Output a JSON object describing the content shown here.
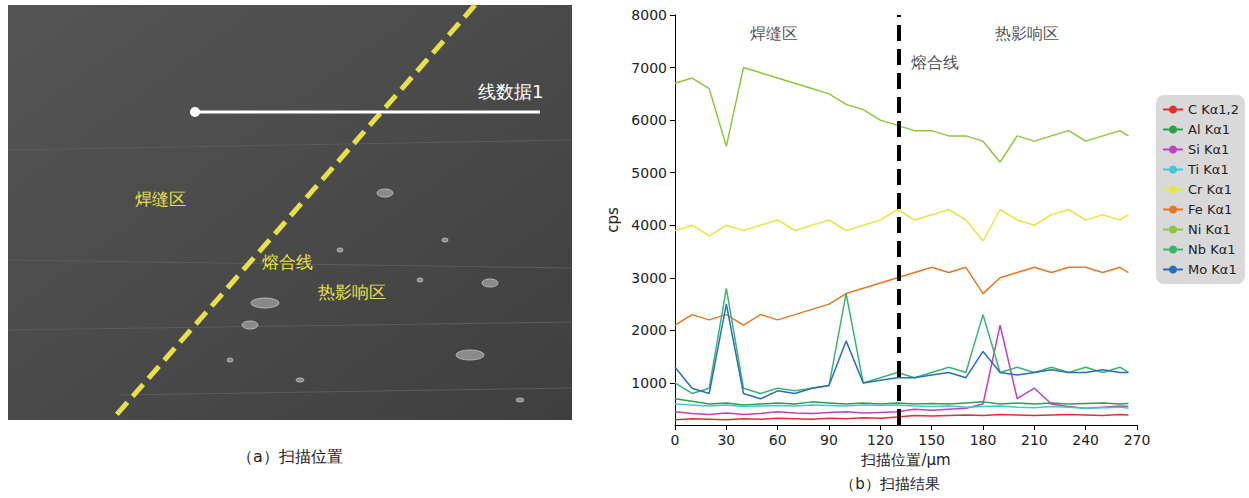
{
  "panel_a": {
    "caption": "（a）扫描位置",
    "labels": {
      "line": "线数据1",
      "weld": "焊缝区",
      "fusion": "熔合线",
      "haz": "热影响区"
    }
  },
  "chart_data": {
    "type": "line",
    "caption": "（b）扫描结果",
    "xlabel": "扫描位置/μm",
    "ylabel": "cps",
    "xlim": [
      0,
      270
    ],
    "xticks": [
      0,
      30,
      60,
      90,
      120,
      150,
      180,
      210,
      240,
      270
    ],
    "ylim": [
      200,
      8000
    ],
    "yticks": [
      1000,
      2000,
      3000,
      4000,
      5000,
      6000,
      7000,
      8000
    ],
    "grid": false,
    "legend": "right",
    "vline": {
      "x": 131
    },
    "annotations": [
      {
        "text": "焊缝区",
        "x": 58,
        "y": 7650
      },
      {
        "text": "热影响区",
        "x": 206,
        "y": 7650
      },
      {
        "text": "熔合线",
        "x": 152,
        "y": 7100
      }
    ],
    "x": [
      0,
      10,
      20,
      30,
      40,
      50,
      60,
      70,
      80,
      90,
      100,
      110,
      120,
      130,
      140,
      150,
      160,
      170,
      180,
      190,
      200,
      210,
      220,
      230,
      240,
      250,
      260,
      265
    ],
    "series": [
      {
        "name": "C Kα1,2",
        "color": "#e03030",
        "values": [
          300,
          320,
          310,
          300,
          320,
          310,
          330,
          320,
          310,
          330,
          320,
          340,
          330,
          350,
          380,
          370,
          380,
          390,
          380,
          400,
          390,
          380,
          390,
          400,
          390,
          380,
          400,
          390
        ]
      },
      {
        "name": "Al Kα1",
        "color": "#2e9e4f",
        "values": [
          700,
          650,
          600,
          620,
          580,
          600,
          620,
          600,
          640,
          620,
          600,
          620,
          600,
          620,
          600,
          610,
          600,
          620,
          640,
          600,
          620,
          600,
          620,
          600,
          610,
          620,
          600,
          610
        ]
      },
      {
        "name": "Si Kα1",
        "color": "#c040c0",
        "values": [
          450,
          420,
          400,
          430,
          400,
          420,
          450,
          430,
          420,
          440,
          450,
          430,
          440,
          450,
          500,
          480,
          500,
          520,
          600,
          2100,
          700,
          900,
          600,
          550,
          520,
          540,
          560,
          550
        ]
      },
      {
        "name": "Ti Kα1",
        "color": "#40c8d8",
        "values": [
          600,
          580,
          560,
          580,
          550,
          560,
          570,
          560,
          580,
          570,
          560,
          580,
          570,
          580,
          560,
          550,
          560,
          540,
          550,
          560,
          540,
          530,
          550,
          540,
          520,
          530,
          540,
          520
        ]
      },
      {
        "name": "Cr Kα1",
        "color": "#e6e64a",
        "values": [
          3900,
          4000,
          3800,
          4000,
          3900,
          4000,
          4100,
          3900,
          4000,
          4100,
          3900,
          4000,
          4100,
          4300,
          4100,
          4200,
          4300,
          4100,
          3700,
          4300,
          4100,
          4000,
          4200,
          4300,
          4100,
          4200,
          4100,
          4200
        ]
      },
      {
        "name": "Fe Kα1",
        "color": "#e87722",
        "values": [
          2100,
          2300,
          2200,
          2300,
          2100,
          2300,
          2200,
          2300,
          2400,
          2500,
          2700,
          2800,
          2900,
          3000,
          3100,
          3200,
          3100,
          3200,
          2700,
          3000,
          3100,
          3200,
          3100,
          3200,
          3200,
          3100,
          3200,
          3100
        ]
      },
      {
        "name": "Ni Kα1",
        "color": "#8cc63f",
        "values": [
          6700,
          6800,
          6600,
          5500,
          7000,
          6900,
          6800,
          6700,
          6600,
          6500,
          6300,
          6200,
          6000,
          5900,
          5800,
          5800,
          5700,
          5700,
          5600,
          5200,
          5700,
          5600,
          5700,
          5800,
          5600,
          5700,
          5800,
          5700
        ]
      },
      {
        "name": "Nb Kα1",
        "color": "#3cb371",
        "values": [
          1000,
          800,
          900,
          2800,
          900,
          800,
          900,
          850,
          900,
          950,
          2700,
          1000,
          1100,
          1200,
          1100,
          1200,
          1300,
          1200,
          2300,
          1200,
          1300,
          1200,
          1300,
          1200,
          1300,
          1200,
          1300,
          1200
        ]
      },
      {
        "name": "Mo Kα1",
        "color": "#2a6ebb",
        "values": [
          1300,
          900,
          800,
          2500,
          800,
          700,
          850,
          800,
          900,
          950,
          1800,
          1000,
          1050,
          1100,
          1100,
          1150,
          1200,
          1100,
          1600,
          1200,
          1150,
          1200,
          1250,
          1200,
          1200,
          1250,
          1200,
          1200
        ]
      }
    ]
  }
}
